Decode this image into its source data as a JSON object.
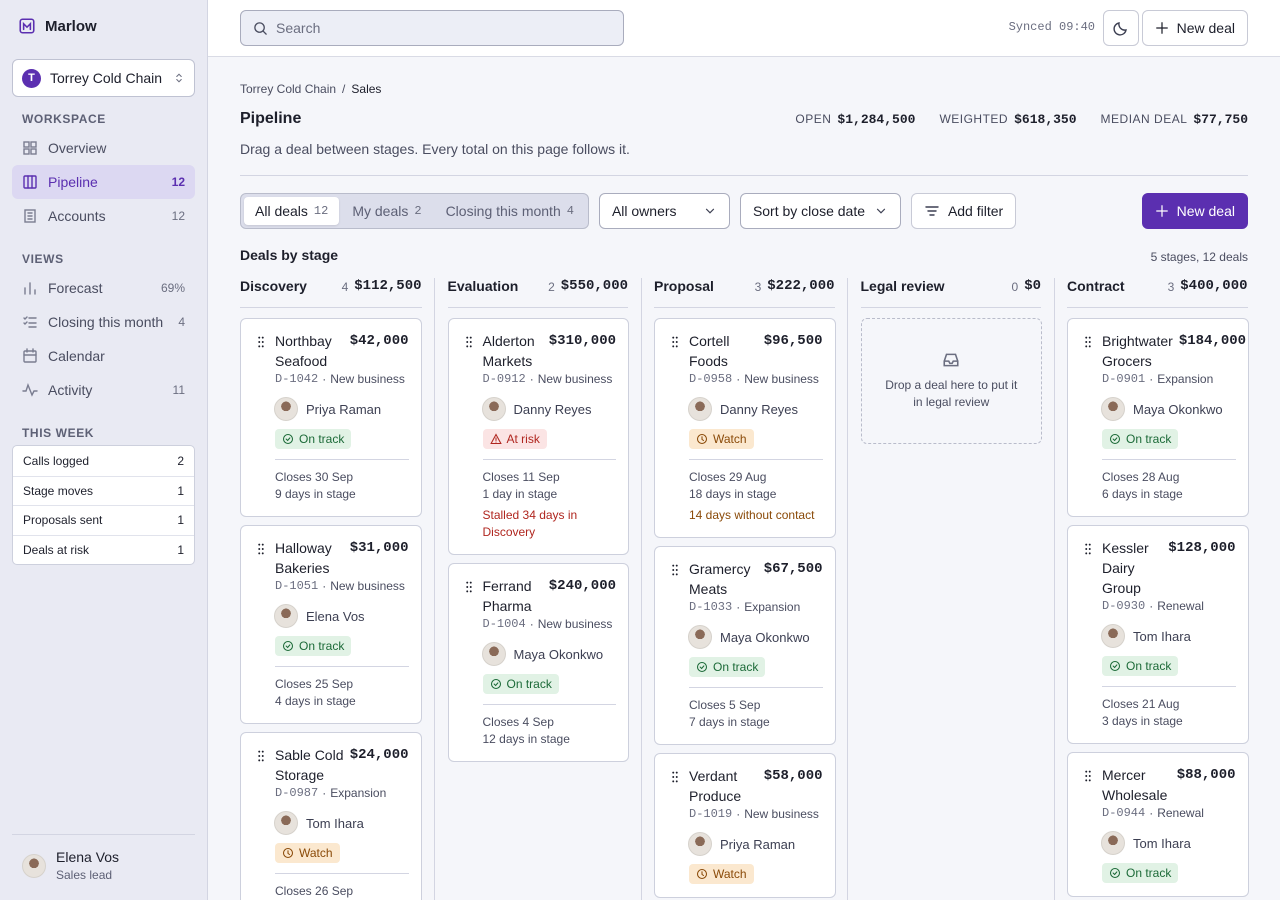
{
  "sidebar": {
    "brand": "Marlow",
    "workspace": {
      "initial": "T",
      "name": "Torrey Cold Chain"
    },
    "sections": [
      {
        "title": "WORKSPACE",
        "items": [
          {
            "label": "Overview"
          },
          {
            "label": "Pipeline",
            "count": 12,
            "active": true
          },
          {
            "label": "Accounts",
            "count": 12
          }
        ]
      },
      {
        "title": "VIEWS",
        "items": [
          {
            "label": "Forecast",
            "count": "69%"
          },
          {
            "label": "Closing this month",
            "count": 4
          },
          {
            "label": "Calendar"
          },
          {
            "label": "Activity",
            "count": 11
          }
        ]
      }
    ],
    "this_week": {
      "title": "THIS WEEK",
      "rows": [
        {
          "label": "Calls logged",
          "count": 2
        },
        {
          "label": "Stage moves",
          "count": 1
        },
        {
          "label": "Proposals sent",
          "count": 1
        },
        {
          "label": "Deals at risk",
          "count": 1
        }
      ]
    },
    "user": {
      "name": "Elena Vos",
      "role": "Sales lead"
    }
  },
  "topbar": {
    "search_placeholder": "Search",
    "sync": "Synced 09:40",
    "new_deal": "New deal"
  },
  "header": {
    "breadcrumb": {
      "parent": "Torrey Cold Chain",
      "separator": "/",
      "current": "Sales"
    },
    "title": "Pipeline",
    "description": "Drag a deal between stages. Every total on this page follows it.",
    "stats": [
      {
        "label": "OPEN",
        "value": "$1,284,500"
      },
      {
        "label": "WEIGHTED",
        "value": "$618,350"
      },
      {
        "label": "MEDIAN DEAL",
        "value": "$77,750"
      }
    ]
  },
  "filters": {
    "tabs": [
      {
        "label": "All deals",
        "count": 12,
        "active": true
      },
      {
        "label": "My deals",
        "count": 2
      },
      {
        "label": "Closing this month",
        "count": 4
      }
    ],
    "owner": "All owners",
    "sort": "Sort by close date",
    "add_filter": "Add filter",
    "new_deal": "New deal"
  },
  "board": {
    "title": "Deals by stage",
    "summary": "5 stages, 12 deals",
    "meta_separator": "·",
    "columns": [
      {
        "name": "Discovery",
        "count": 4,
        "total": "$112,500",
        "cards": [
          {
            "title": "Northbay Seafood",
            "amount": "$42,000",
            "id": "D-1042",
            "kind": "New business",
            "owner": "Priya Raman",
            "status": "On track",
            "tone": "good",
            "closes": "Closes 30 Sep",
            "in_stage": "9 days in stage"
          },
          {
            "title": "Halloway Bakeries",
            "amount": "$31,000",
            "id": "D-1051",
            "kind": "New business",
            "owner": "Elena Vos",
            "status": "On track",
            "tone": "good",
            "closes": "Closes 25 Sep",
            "in_stage": "4 days in stage"
          },
          {
            "title": "Sable Cold Storage",
            "amount": "$24,000",
            "id": "D-0987",
            "kind": "Expansion",
            "owner": "Tom Ihara",
            "status": "Watch",
            "tone": "watch",
            "closes": "Closes 26 Sep"
          }
        ]
      },
      {
        "name": "Evaluation",
        "count": 2,
        "total": "$550,000",
        "cards": [
          {
            "title": "Alderton Markets",
            "amount": "$310,000",
            "id": "D-0912",
            "kind": "New business",
            "owner": "Danny Reyes",
            "status": "At risk",
            "tone": "risk",
            "closes": "Closes 11 Sep",
            "in_stage": "1 day in stage",
            "alert": "Stalled 34 days in Discovery",
            "alert_tone": "risk"
          },
          {
            "title": "Ferrand Pharma",
            "amount": "$240,000",
            "id": "D-1004",
            "kind": "New business",
            "owner": "Maya Okonkwo",
            "status": "On track",
            "tone": "good",
            "closes": "Closes 4 Sep",
            "in_stage": "12 days in stage"
          }
        ]
      },
      {
        "name": "Proposal",
        "count": 3,
        "total": "$222,000",
        "cards": [
          {
            "title": "Cortell Foods",
            "amount": "$96,500",
            "id": "D-0958",
            "kind": "New business",
            "owner": "Danny Reyes",
            "status": "Watch",
            "tone": "watch",
            "closes": "Closes 29 Aug",
            "in_stage": "18 days in stage",
            "alert": "14 days without contact",
            "alert_tone": "watch"
          },
          {
            "title": "Gramercy Meats",
            "amount": "$67,500",
            "id": "D-1033",
            "kind": "Expansion",
            "owner": "Maya Okonkwo",
            "status": "On track",
            "tone": "good",
            "closes": "Closes 5 Sep",
            "in_stage": "7 days in stage"
          },
          {
            "title": "Verdant Produce",
            "amount": "$58,000",
            "id": "D-1019",
            "kind": "New business",
            "owner": "Priya Raman",
            "status": "Watch",
            "tone": "watch"
          }
        ]
      },
      {
        "name": "Legal review",
        "count": 0,
        "total": "$0",
        "cards": [],
        "empty": "Drop a deal here to put it in legal review"
      },
      {
        "name": "Contract",
        "count": 3,
        "total": "$400,000",
        "cards": [
          {
            "title": "Brightwater Grocers",
            "amount": "$184,000",
            "id": "D-0901",
            "kind": "Expansion",
            "owner": "Maya Okonkwo",
            "status": "On track",
            "tone": "good",
            "closes": "Closes 28 Aug",
            "in_stage": "6 days in stage"
          },
          {
            "title": "Kessler Dairy Group",
            "amount": "$128,000",
            "id": "D-0930",
            "kind": "Renewal",
            "owner": "Tom Ihara",
            "status": "On track",
            "tone": "good",
            "closes": "Closes 21 Aug",
            "in_stage": "3 days in stage"
          },
          {
            "title": "Mercer Wholesale",
            "amount": "$88,000",
            "id": "D-0944",
            "kind": "Renewal",
            "owner": "Tom Ihara",
            "status": "On track",
            "tone": "good"
          }
        ]
      }
    ]
  }
}
